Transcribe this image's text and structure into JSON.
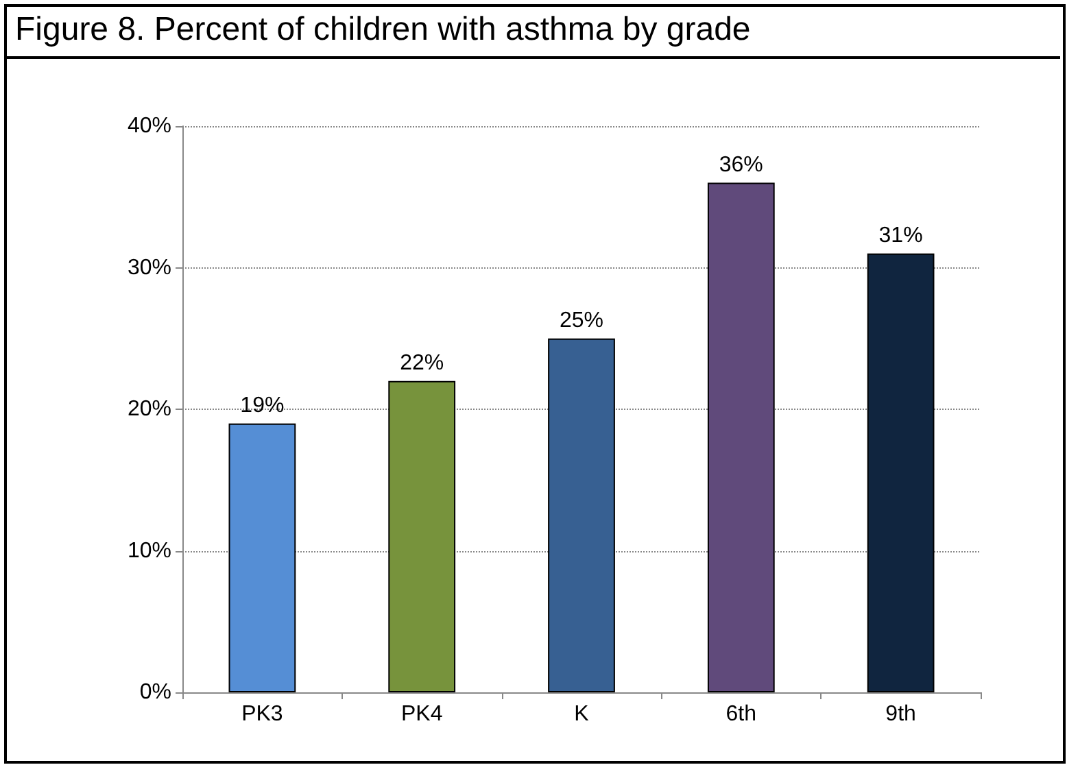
{
  "chart_data": {
    "type": "bar",
    "title": "Figure 8.  Percent of children with asthma by grade",
    "categories": [
      "PK3",
      "PK4",
      "K",
      "6th",
      "9th"
    ],
    "values": [
      19,
      22,
      25,
      36,
      31
    ],
    "colors": [
      "#558ed5",
      "#77933c",
      "#376092",
      "#604a7b",
      "#10253f"
    ],
    "value_labels": [
      "19%",
      "22%",
      "25%",
      "36%",
      "31%"
    ],
    "ylim": [
      0,
      40
    ],
    "yticks": [
      {
        "value": 0,
        "label": "0%"
      },
      {
        "value": 10,
        "label": "10%"
      },
      {
        "value": 20,
        "label": "20%"
      },
      {
        "value": 30,
        "label": "30%"
      },
      {
        "value": 40,
        "label": "40%"
      }
    ],
    "grid": "y"
  }
}
